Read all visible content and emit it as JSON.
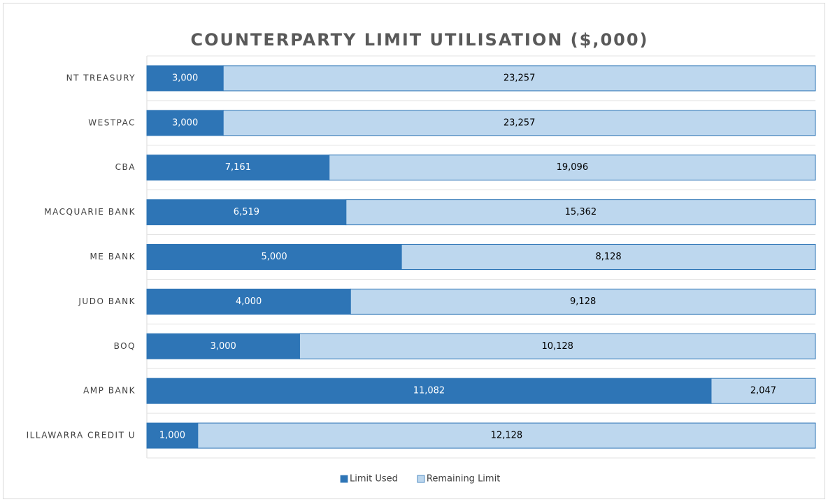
{
  "chart_data": {
    "type": "bar",
    "orientation": "horizontal",
    "stacking": "percent",
    "title": "COUNTERPARTY LIMIT UTILISATION ($,000)",
    "categories": [
      "NT TREASURY",
      "WESTPAC",
      "CBA",
      "MACQUARIE BANK",
      "ME BANK",
      "JUDO BANK",
      "BOQ",
      "AMP BANK",
      "ILLAWARRA CREDIT U"
    ],
    "series": [
      {
        "name": "Limit Used",
        "color": "#2e75b6",
        "values": [
          3000,
          3000,
          7161,
          6519,
          5000,
          4000,
          3000,
          11082,
          1000
        ],
        "value_labels": [
          "3,000",
          "3,000",
          "7,161",
          "6,519",
          "5,000",
          "4,000",
          "3,000",
          "11,082",
          "1,000"
        ]
      },
      {
        "name": "Remaining Limit",
        "color": "#bdd7ee",
        "values": [
          23257,
          23257,
          19096,
          15362,
          8128,
          9128,
          10128,
          2047,
          12128
        ],
        "value_labels": [
          "23,257",
          "23,257",
          "19,096",
          "15,362",
          "8,128",
          "9,128",
          "10,128",
          "2,047",
          "12,128"
        ]
      }
    ],
    "legend": "bottom"
  }
}
